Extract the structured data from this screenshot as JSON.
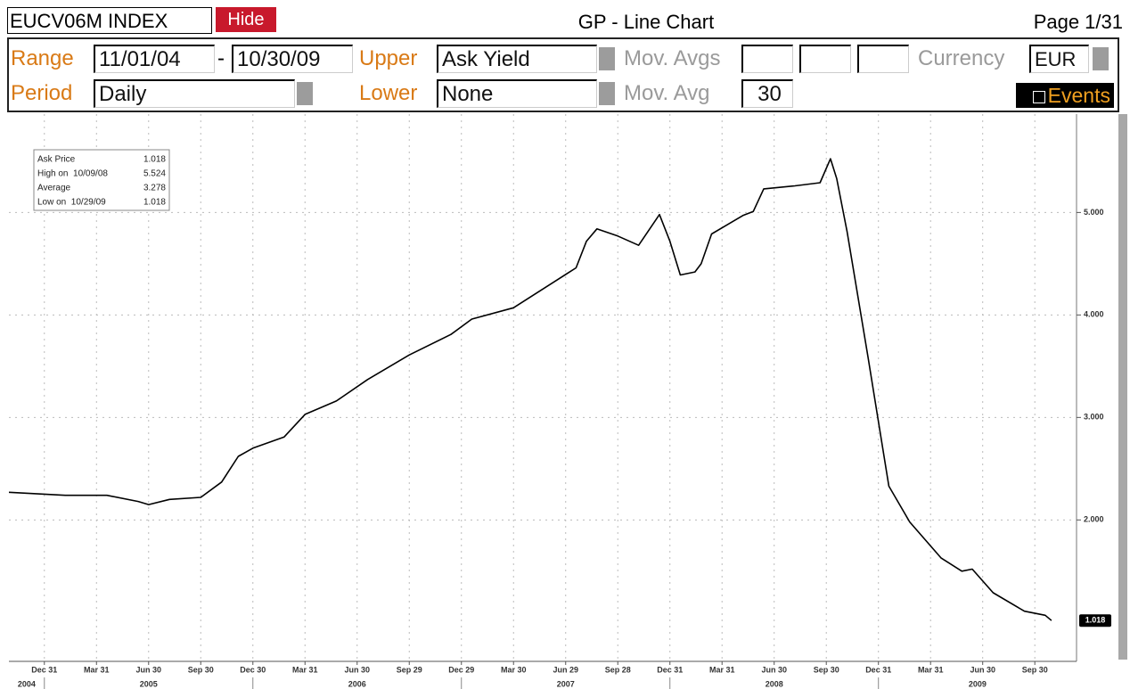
{
  "header": {
    "ticker": "EUCV06M INDEX",
    "hide": "Hide",
    "title": "GP - Line Chart",
    "page": "Page 1/31"
  },
  "form": {
    "range_label": "Range",
    "range_start": "11/01/04",
    "range_sep": "-",
    "range_end": "10/30/09",
    "upper_label": "Upper",
    "upper": "Ask Yield",
    "mov_avgs_label": "Mov. Avgs",
    "currency_label": "Currency",
    "currency": "EUR",
    "period_label": "Period",
    "period": "Daily",
    "lower_label": "Lower",
    "lower": "None",
    "mov_avg_label": "Mov. Avg",
    "mov_avg": "30",
    "events": "Events"
  },
  "chart_data": {
    "type": "line",
    "x": [
      2004.83,
      2005.1,
      2005.3,
      2005.45,
      2005.5,
      2005.6,
      2005.75,
      2005.85,
      2005.93,
      2006.0,
      2006.15,
      2006.25,
      2006.4,
      2006.55,
      2006.75,
      2006.95,
      2007.05,
      2007.25,
      2007.45,
      2007.55,
      2007.6,
      2007.65,
      2007.75,
      2007.85,
      2007.95,
      2008.0,
      2008.05,
      2008.12,
      2008.15,
      2008.2,
      2008.35,
      2008.4,
      2008.45,
      2008.6,
      2008.72,
      2008.77,
      2008.8,
      2008.85,
      2008.95,
      2009.05,
      2009.15,
      2009.3,
      2009.4,
      2009.45,
      2009.55,
      2009.7,
      2009.8,
      2009.83
    ],
    "series": [
      {
        "color": "#000000",
        "values": [
          2.27,
          2.24,
          2.24,
          2.18,
          2.15,
          2.2,
          2.22,
          2.37,
          2.62,
          2.7,
          2.81,
          3.03,
          3.16,
          3.37,
          3.61,
          3.81,
          3.96,
          4.07,
          4.33,
          4.46,
          4.72,
          4.84,
          4.77,
          4.68,
          4.98,
          4.72,
          4.39,
          4.42,
          4.5,
          4.79,
          4.97,
          5.01,
          5.23,
          5.26,
          5.29,
          5.524,
          5.33,
          4.81,
          3.59,
          2.33,
          1.98,
          1.63,
          1.5,
          1.52,
          1.29,
          1.11,
          1.07,
          1.018
        ]
      }
    ],
    "last_value_label": "1.018",
    "xlim": [
      2004.83,
      2009.95
    ],
    "ylim": [
      0.62,
      5.96
    ],
    "xticks": [
      {
        "value": 2005.0,
        "label": "Dec 31"
      },
      {
        "value": 2005.25,
        "label": "Mar 31"
      },
      {
        "value": 2005.5,
        "label": "Jun 30"
      },
      {
        "value": 2005.75,
        "label": "Sep 30"
      },
      {
        "value": 2006.0,
        "label": "Dec 30"
      },
      {
        "value": 2006.25,
        "label": "Mar 31"
      },
      {
        "value": 2006.5,
        "label": "Jun 30"
      },
      {
        "value": 2006.75,
        "label": "Sep 29"
      },
      {
        "value": 2007.0,
        "label": "Dec 29"
      },
      {
        "value": 2007.25,
        "label": "Mar 30"
      },
      {
        "value": 2007.5,
        "label": "Jun 29"
      },
      {
        "value": 2007.75,
        "label": "Sep 28"
      },
      {
        "value": 2008.0,
        "label": "Dec 31"
      },
      {
        "value": 2008.25,
        "label": "Mar 31"
      },
      {
        "value": 2008.5,
        "label": "Jun 30"
      },
      {
        "value": 2008.75,
        "label": "Sep 30"
      },
      {
        "value": 2009.0,
        "label": "Dec 31"
      },
      {
        "value": 2009.25,
        "label": "Mar 31"
      },
      {
        "value": 2009.5,
        "label": "Jun 30"
      },
      {
        "value": 2009.75,
        "label": "Sep 30"
      }
    ],
    "years": [
      2004,
      2005,
      2006,
      2007,
      2008,
      2009
    ],
    "yticks": [
      {
        "value": 2,
        "label": "2.000"
      },
      {
        "value": 3,
        "label": "3.000"
      },
      {
        "value": 4,
        "label": "4.000"
      },
      {
        "value": 5,
        "label": "5.000"
      }
    ],
    "grid": true,
    "info_box": [
      [
        "Ask Price",
        "1.018"
      ],
      [
        "High on  10/09/08",
        "5.524"
      ],
      [
        "Average",
        "3.278"
      ],
      [
        "Low on  10/29/09",
        "1.018"
      ]
    ]
  }
}
